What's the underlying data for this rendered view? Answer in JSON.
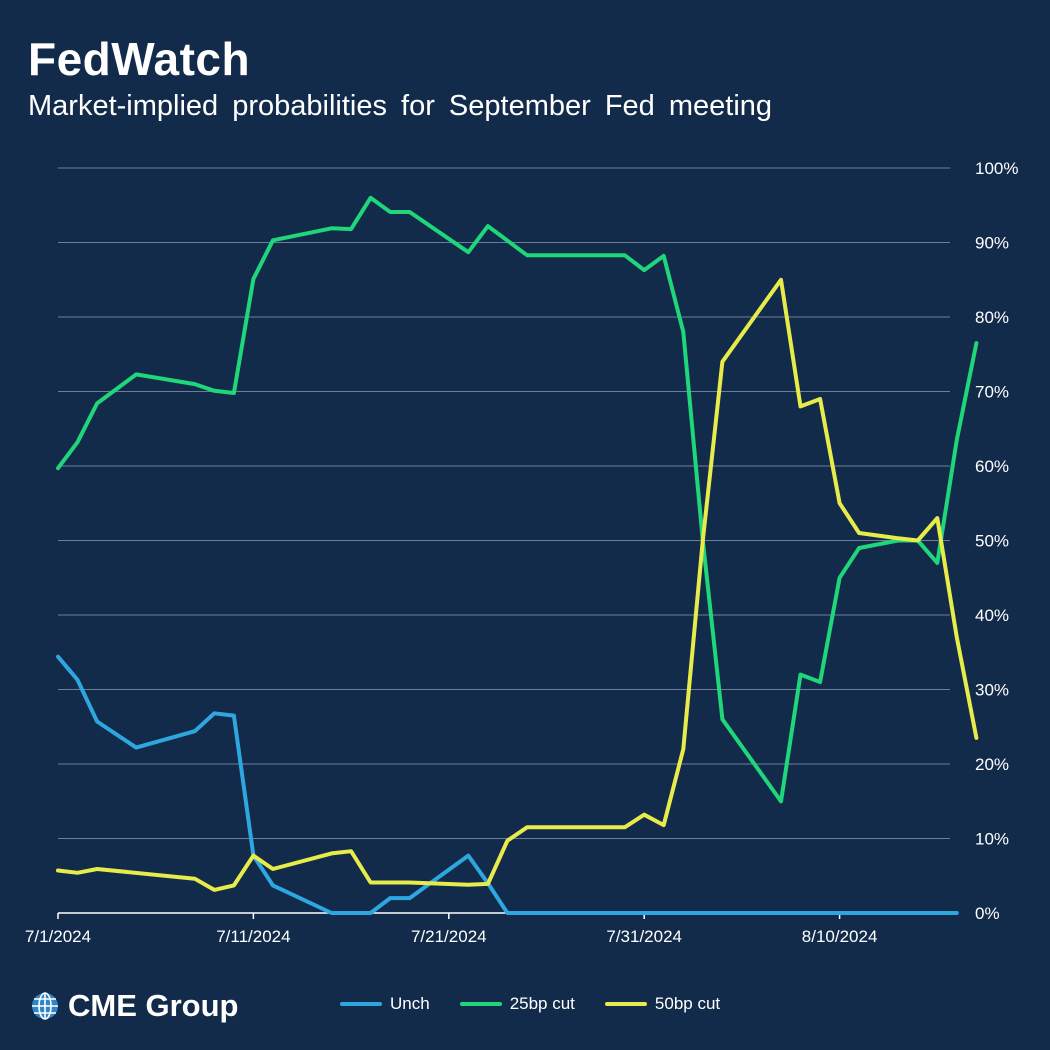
{
  "header": {
    "title": "FedWatch",
    "subtitle": "Market-implied probabilities for September Fed meeting"
  },
  "logo": {
    "text": "CME Group",
    "icon": "globe-icon"
  },
  "colors": {
    "background": "#132b4a",
    "gridline": "#6b7f98",
    "unch": "#2ea7e0",
    "cut25": "#1fd67a",
    "cut50": "#e8ec4a"
  },
  "chart_data": {
    "type": "line",
    "title": "Market-implied probabilities for September Fed meeting",
    "xlabel": "",
    "ylabel": "",
    "x_ticks": [
      "7/1/2024",
      "7/11/2024",
      "7/21/2024",
      "7/31/2024",
      "8/10/2024"
    ],
    "y_ticks": [
      "0%",
      "10%",
      "20%",
      "30%",
      "40%",
      "50%",
      "60%",
      "70%",
      "80%",
      "90%",
      "100%"
    ],
    "ylim": [
      0,
      100
    ],
    "xlim": [
      "2024-07-01",
      "2024-08-16"
    ],
    "y_axis_side": "right",
    "grid": "horizontal",
    "legend_position": "bottom",
    "series": [
      {
        "name": "Unch",
        "color": "#2ea7e0",
        "points": [
          [
            "2024-07-01",
            34.4
          ],
          [
            "2024-07-02",
            31.3
          ],
          [
            "2024-07-03",
            25.7
          ],
          [
            "2024-07-05",
            22.2
          ],
          [
            "2024-07-08",
            24.4
          ],
          [
            "2024-07-09",
            26.8
          ],
          [
            "2024-07-10",
            26.5
          ],
          [
            "2024-07-11",
            7.7
          ],
          [
            "2024-07-12",
            3.7
          ],
          [
            "2024-07-15",
            0
          ],
          [
            "2024-07-17",
            0
          ],
          [
            "2024-07-18",
            2
          ],
          [
            "2024-07-19",
            2
          ],
          [
            "2024-07-22",
            7.7
          ],
          [
            "2024-07-23",
            4
          ],
          [
            "2024-07-24",
            0
          ],
          [
            "2024-07-31",
            0
          ],
          [
            "2024-08-10",
            0
          ],
          [
            "2024-08-16",
            0
          ]
        ]
      },
      {
        "name": "25bp cut",
        "color": "#1fd67a",
        "points": [
          [
            "2024-07-01",
            59.7
          ],
          [
            "2024-07-02",
            63.2
          ],
          [
            "2024-07-03",
            68.4
          ],
          [
            "2024-07-05",
            72.3
          ],
          [
            "2024-07-08",
            71
          ],
          [
            "2024-07-09",
            70.1
          ],
          [
            "2024-07-10",
            69.8
          ],
          [
            "2024-07-11",
            85.1
          ],
          [
            "2024-07-12",
            90.3
          ],
          [
            "2024-07-15",
            91.9
          ],
          [
            "2024-07-16",
            91.8
          ],
          [
            "2024-07-17",
            96
          ],
          [
            "2024-07-18",
            94.1
          ],
          [
            "2024-07-19",
            94.1
          ],
          [
            "2024-07-22",
            88.7
          ],
          [
            "2024-07-23",
            92.2
          ],
          [
            "2024-07-25",
            88.3
          ],
          [
            "2024-07-29",
            88.3
          ],
          [
            "2024-07-30",
            88.3
          ],
          [
            "2024-07-31",
            86.3
          ],
          [
            "2024-08-01",
            88.2
          ],
          [
            "2024-08-02",
            78
          ],
          [
            "2024-08-03",
            50
          ],
          [
            "2024-08-04",
            26
          ],
          [
            "2024-08-07",
            15
          ],
          [
            "2024-08-08",
            32
          ],
          [
            "2024-08-09",
            31
          ],
          [
            "2024-08-10",
            45
          ],
          [
            "2024-08-11",
            49
          ],
          [
            "2024-08-13",
            50
          ],
          [
            "2024-08-14",
            50
          ],
          [
            "2024-08-15",
            47
          ],
          [
            "2024-08-16",
            63.5
          ],
          [
            "2024-08-17",
            76.5
          ]
        ]
      },
      {
        "name": "50bp cut",
        "color": "#e8ec4a",
        "points": [
          [
            "2024-07-01",
            5.7
          ],
          [
            "2024-07-02",
            5.4
          ],
          [
            "2024-07-03",
            5.9
          ],
          [
            "2024-07-08",
            4.6
          ],
          [
            "2024-07-09",
            3.1
          ],
          [
            "2024-07-10",
            3.7
          ],
          [
            "2024-07-11",
            7.7
          ],
          [
            "2024-07-12",
            5.9
          ],
          [
            "2024-07-15",
            8
          ],
          [
            "2024-07-16",
            8.3
          ],
          [
            "2024-07-17",
            4.1
          ],
          [
            "2024-07-19",
            4.1
          ],
          [
            "2024-07-22",
            3.8
          ],
          [
            "2024-07-23",
            3.9
          ],
          [
            "2024-07-24",
            9.7
          ],
          [
            "2024-07-25",
            11.5
          ],
          [
            "2024-07-29",
            11.5
          ],
          [
            "2024-07-30",
            11.5
          ],
          [
            "2024-07-31",
            13.2
          ],
          [
            "2024-08-01",
            11.8
          ],
          [
            "2024-08-02",
            22
          ],
          [
            "2024-08-03",
            50
          ],
          [
            "2024-08-04",
            74
          ],
          [
            "2024-08-07",
            85
          ],
          [
            "2024-08-08",
            68
          ],
          [
            "2024-08-09",
            69
          ],
          [
            "2024-08-10",
            55
          ],
          [
            "2024-08-11",
            51
          ],
          [
            "2024-08-13",
            50.3
          ],
          [
            "2024-08-14",
            50
          ],
          [
            "2024-08-15",
            53
          ],
          [
            "2024-08-16",
            37
          ],
          [
            "2024-08-17",
            23.5
          ]
        ]
      }
    ]
  }
}
